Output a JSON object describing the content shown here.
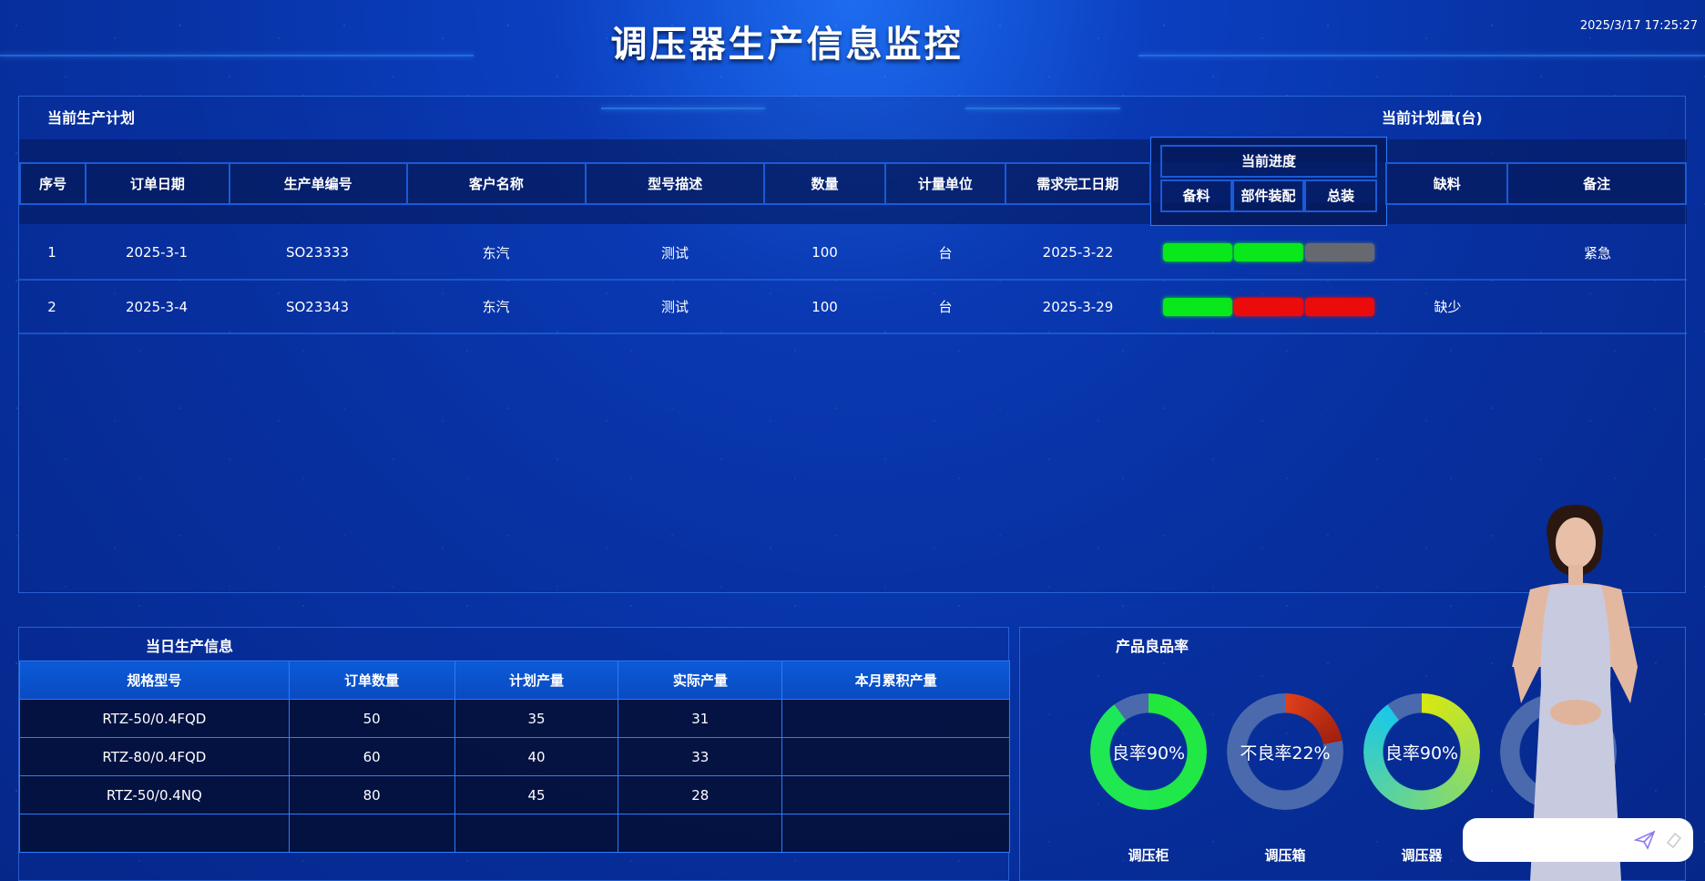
{
  "header": {
    "title": "调压器生产信息监控",
    "datetime": "2025/3/17 17:25:27"
  },
  "plan": {
    "title": "当前生产计划",
    "right_title": "当前计划量(台)",
    "columns": [
      "序号",
      "订单日期",
      "生产单编号",
      "客户名称",
      "型号描述",
      "数量",
      "计量单位",
      "需求完工日期",
      "当前进度",
      "缺料",
      "备注"
    ],
    "progress_columns": [
      "备料",
      "部件装配",
      "总装"
    ],
    "status_colors": {
      "done": "#08e81a",
      "pending": "#666a70",
      "missing": "#ec0b0b"
    },
    "rows": [
      {
        "no": "1",
        "date": "2025-3-1",
        "order": "SO23333",
        "customer": "东汽",
        "model": "测试",
        "qty": "100",
        "unit": "台",
        "due": "2025-3-22",
        "progress": [
          "done",
          "done",
          "pending"
        ],
        "shortage": "",
        "note": "紧急"
      },
      {
        "no": "2",
        "date": "2025-3-4",
        "order": "SO23343",
        "customer": "东汽",
        "model": "测试",
        "qty": "100",
        "unit": "台",
        "due": "2025-3-29",
        "progress": [
          "done",
          "missing",
          "missing"
        ],
        "shortage": "缺少",
        "note": ""
      }
    ]
  },
  "daily": {
    "title": "当日生产信息",
    "columns": [
      "规格型号",
      "订单数量",
      "计划产量",
      "实际产量",
      "本月累积产量"
    ],
    "rows": [
      [
        "RTZ-50/0.4FQD",
        "50",
        "35",
        "31",
        ""
      ],
      [
        "RTZ-80/0.4FQD",
        "60",
        "40",
        "33",
        ""
      ],
      [
        "RTZ-50/0.4NQ",
        "80",
        "45",
        "28",
        ""
      ]
    ]
  },
  "yield": {
    "title": "产品良品率",
    "items": [
      {
        "label": "良率90%",
        "name": "调压柜",
        "percent": 90,
        "colors": [
          "#22e83c",
          "#1ee85a"
        ]
      },
      {
        "label": "不良率22%",
        "name": "调压箱",
        "percent": 22,
        "colors": [
          "#e0401a",
          "#a02010"
        ]
      },
      {
        "label": "良率90%",
        "name": "调压器",
        "percent": 90,
        "colors": [
          "#d8e810",
          "#1ac8e8"
        ]
      },
      {
        "label": "不",
        "name": "",
        "percent": 0,
        "colors": [
          "#4a6aad",
          "#4a6aad"
        ]
      }
    ],
    "track_color": "#4a6aad"
  },
  "chat": {
    "placeholder": ""
  }
}
